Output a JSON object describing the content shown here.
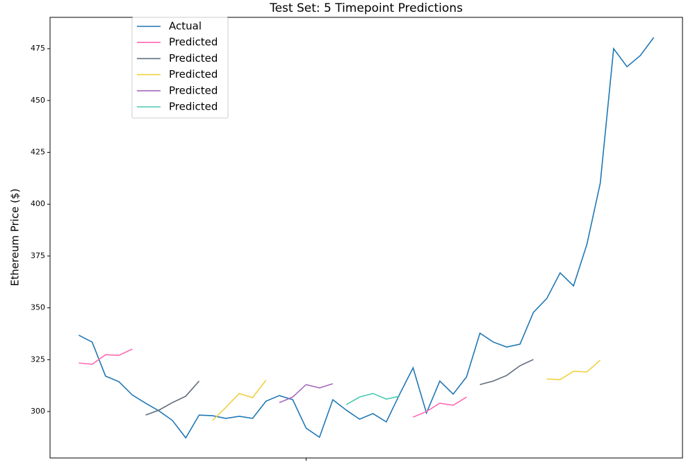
{
  "chart_data": {
    "type": "line",
    "title": "Test Set: 5 Timepoint Predictions",
    "y_label": "Ethereum Price ($)",
    "x": [
      0,
      1,
      2,
      3,
      4,
      5,
      6,
      7,
      8,
      9,
      10,
      11,
      12,
      13,
      14,
      15,
      16,
      17,
      18,
      19,
      20,
      21,
      22,
      23,
      24,
      25,
      26,
      27,
      28,
      29,
      30,
      31,
      32,
      33,
      34,
      35,
      36,
      37,
      38,
      39,
      40,
      41,
      42,
      43
    ],
    "xlim": [
      -2.15,
      45.15
    ],
    "xticks": [
      17
    ],
    "ylim": [
      277.6,
      490.1
    ],
    "yticks": [
      300,
      325,
      350,
      375,
      400,
      425,
      450,
      475
    ],
    "series": [
      {
        "name": "Actual",
        "color": "#1f77b4",
        "values": [
          336.8,
          333.5,
          317.1,
          314.4,
          308.0,
          304.0,
          300.3,
          295.7,
          287.3,
          298.3,
          298.0,
          296.7,
          297.7,
          296.7,
          305.0,
          307.7,
          305.7,
          292.0,
          287.6,
          305.7,
          300.7,
          296.3,
          299.0,
          295.0,
          308.4,
          321.1,
          299.3,
          314.7,
          308.4,
          316.7,
          337.8,
          333.5,
          331.1,
          332.5,
          347.8,
          354.5,
          366.9,
          360.6,
          380.6,
          410.1,
          475.0,
          466.3,
          471.7,
          480.4
        ]
      },
      {
        "name": "Predicted",
        "color": "#ff69b4",
        "values": [
          323.4,
          322.8,
          327.4,
          327.1,
          330.1,
          null,
          null,
          null,
          null,
          null,
          null,
          null,
          null,
          null,
          null,
          null,
          null,
          null,
          null,
          null,
          null,
          null,
          null,
          null,
          null,
          297.3,
          300.0,
          304.0,
          303.0,
          307.0,
          null,
          null,
          null,
          null,
          null,
          null,
          null,
          null,
          null,
          null,
          null,
          null,
          null,
          null
        ]
      },
      {
        "name": "Predicted",
        "color": "#5f6b7c",
        "values": [
          null,
          null,
          null,
          null,
          null,
          298.3,
          300.7,
          304.3,
          307.4,
          314.7,
          null,
          null,
          null,
          null,
          null,
          null,
          null,
          null,
          null,
          null,
          null,
          null,
          null,
          null,
          null,
          null,
          null,
          null,
          null,
          null,
          313.0,
          314.7,
          317.4,
          322.1,
          325.1,
          null,
          null,
          null,
          null,
          null,
          null,
          null,
          null,
          null
        ]
      },
      {
        "name": "Predicted",
        "color": "#f0d040",
        "values": [
          null,
          null,
          null,
          null,
          null,
          null,
          null,
          null,
          null,
          null,
          295.7,
          302.0,
          308.7,
          306.7,
          315.1,
          null,
          null,
          null,
          null,
          null,
          null,
          null,
          null,
          null,
          null,
          null,
          null,
          null,
          null,
          null,
          null,
          null,
          null,
          null,
          null,
          315.7,
          315.4,
          319.4,
          319.1,
          324.8,
          null,
          null,
          null,
          null
        ]
      },
      {
        "name": "Predicted",
        "color": "#a569bd",
        "values": [
          null,
          null,
          null,
          null,
          null,
          null,
          null,
          null,
          null,
          null,
          null,
          null,
          null,
          null,
          null,
          304.3,
          307.0,
          313.0,
          311.4,
          313.4,
          null,
          null,
          null,
          null,
          null,
          null,
          null,
          null,
          null,
          null,
          null,
          null,
          null,
          null,
          null,
          null,
          null,
          null,
          null,
          null,
          null,
          null,
          null,
          null
        ]
      },
      {
        "name": "Predicted",
        "color": "#48c9b0",
        "values": [
          null,
          null,
          null,
          null,
          null,
          null,
          null,
          null,
          null,
          null,
          null,
          null,
          null,
          null,
          null,
          null,
          null,
          null,
          null,
          null,
          303.3,
          307.0,
          308.7,
          306.0,
          307.4,
          null,
          null,
          null,
          null,
          null,
          null,
          null,
          null,
          null,
          null,
          null,
          null,
          null,
          null,
          null,
          null,
          null,
          null,
          null
        ]
      }
    ]
  }
}
